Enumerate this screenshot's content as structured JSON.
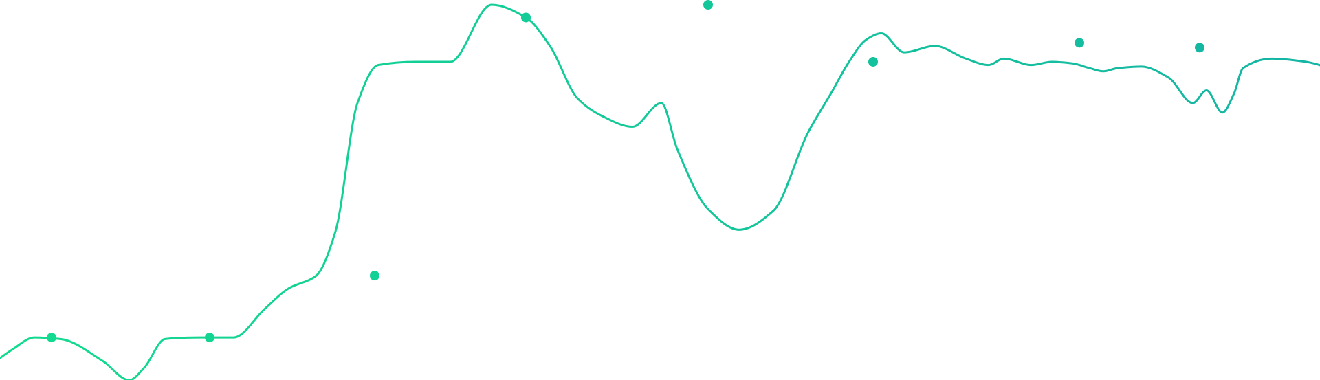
{
  "chart_data": {
    "type": "line",
    "curve": "smooth",
    "grid": false,
    "legend": "none",
    "axes_visible": false,
    "x": [
      0.0,
      0.18,
      0.5,
      0.88,
      1.5,
      1.88,
      2.1,
      2.4,
      2.9,
      3.4,
      3.85,
      4.2,
      4.6,
      4.88,
      5.2,
      5.5,
      6.05,
      6.55,
      7.15,
      7.65,
      8.0,
      8.4,
      8.75,
      9.2,
      9.62,
      9.85,
      10.3,
      10.75,
      11.25,
      11.75,
      12.1,
      12.35,
      12.6,
      12.82,
      13.15,
      13.6,
      14.05,
      14.38,
      14.6,
      15.0,
      15.3,
      15.6,
      15.85,
      16.05,
      16.25,
      16.6,
      17.0,
      17.35,
      17.55,
      17.78,
      17.95,
      18.08,
      18.5,
      19.0,
      19.35
    ],
    "y": [
      -18.5,
      -15.8,
      -12.0,
      -12.5,
      -19.5,
      -25.5,
      -21.5,
      -12.5,
      -12.0,
      -12.0,
      -3.0,
      3.5,
      7.5,
      21.5,
      62.0,
      74.0,
      75.0,
      75.0,
      93.0,
      89.0,
      80.0,
      63.5,
      58.0,
      54.5,
      62.0,
      47.5,
      28.5,
      22.0,
      28.0,
      52.5,
      65.5,
      75.0,
      82.0,
      84.0,
      78.0,
      80.0,
      76.0,
      74.0,
      76.0,
      74.0,
      75.0,
      74.5,
      73.0,
      72.0,
      73.0,
      73.5,
      70.0,
      62.0,
      66.0,
      59.0,
      65.0,
      73.0,
      76.0,
      75.0,
      73.0
    ],
    "markers": [
      {
        "x": 0.75,
        "y": -12.0
      },
      {
        "x": 3.05,
        "y": -12.0
      },
      {
        "x": 5.45,
        "y": 7.5
      },
      {
        "x": 7.65,
        "y": 89.0
      },
      {
        "x": 10.3,
        "y": 93.0
      },
      {
        "x": 12.7,
        "y": 75.0
      },
      {
        "x": 15.7,
        "y": 81.0
      },
      {
        "x": 17.45,
        "y": 79.5
      }
    ],
    "xlim": [
      0,
      19.2
    ],
    "ylim": [
      -25,
      93
    ],
    "colors": {
      "line_start": "#12DB8F",
      "line_end": "#14B5A4",
      "marker_start": "#12DB8F",
      "marker_end": "#14B5A4"
    },
    "title": "",
    "xlabel": "",
    "ylabel": ""
  }
}
